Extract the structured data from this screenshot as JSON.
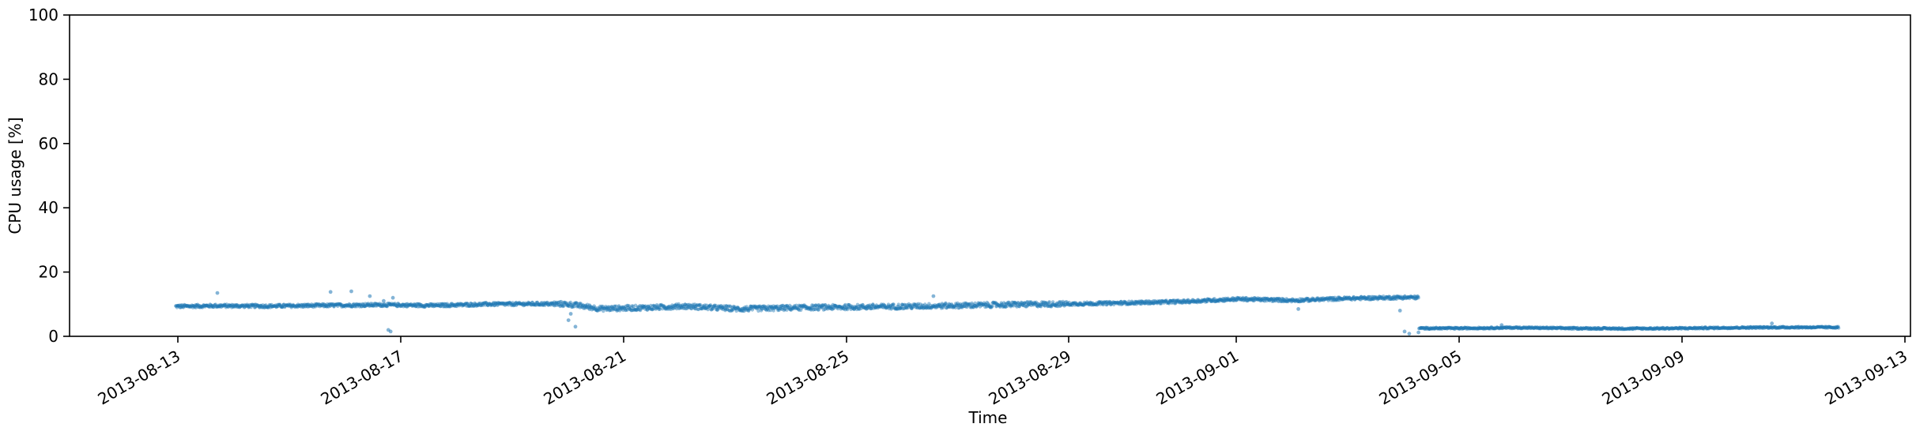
{
  "chart_data": {
    "type": "scatter",
    "xlabel": "Time",
    "ylabel": "CPU usage [%]",
    "ylim": [
      0,
      100
    ],
    "xlim": [
      "2013-08-10T22:00",
      "2013-09-13T03:00"
    ],
    "y_ticks": [
      "0",
      "20",
      "40",
      "60",
      "80",
      "100"
    ],
    "x_ticks": [
      "2013-08-13",
      "2013-08-17",
      "2013-08-21",
      "2013-08-25",
      "2013-08-29",
      "2013-09-01",
      "2013-09-05",
      "2013-09-09",
      "2013-09-13"
    ],
    "grid": false,
    "legend": "none",
    "marker_color": "#1f77b4",
    "series": [
      {
        "x": [
          "2013-08-12T20:00",
          "2013-08-13T12:00",
          "2013-08-14T12:00",
          "2013-08-15T12:00",
          "2013-08-16T12:00",
          "2013-08-17T12:00",
          "2013-08-18T12:00",
          "2013-08-19T12:00",
          "2013-08-19T22:00",
          "2013-08-20T12:00",
          "2013-08-21T12:00",
          "2013-08-22T00:00",
          "2013-08-23T00:00",
          "2013-08-24T00:00",
          "2013-08-25T00:00",
          "2013-08-26T00:00",
          "2013-08-27T00:00",
          "2013-08-28T00:00",
          "2013-08-29T00:00",
          "2013-08-30T00:00",
          "2013-08-31T00:00",
          "2013-09-01T00:00",
          "2013-09-02T00:00",
          "2013-09-03T00:00",
          "2013-09-03T22:00",
          "2013-09-04T06:00",
          "2013-09-05T00:00",
          "2013-09-06T00:00",
          "2013-09-07T00:00",
          "2013-09-08T00:00",
          "2013-09-09T00:00",
          "2013-09-10T00:00",
          "2013-09-11T00:00",
          "2013-09-11T20:00"
        ],
        "y": [
          9.3,
          9.5,
          9.4,
          9.6,
          9.8,
          9.6,
          10.0,
          10.1,
          10.0,
          8.6,
          9.0,
          9.4,
          8.5,
          8.9,
          9.1,
          9.3,
          9.6,
          9.9,
          10.1,
          10.4,
          10.8,
          11.6,
          11.2,
          11.8,
          12.1,
          2.5,
          2.5,
          2.7,
          2.5,
          2.4,
          2.5,
          2.7,
          2.8,
          2.8
        ],
        "outliers": [
          {
            "x": "2013-08-13T14:00",
            "y": 13.5
          },
          {
            "x": "2013-08-15T15:00",
            "y": 13.8
          },
          {
            "x": "2013-08-16T00:00",
            "y": 14.0
          },
          {
            "x": "2013-08-16T08:00",
            "y": 12.5
          },
          {
            "x": "2013-08-16T14:00",
            "y": 11.0
          },
          {
            "x": "2013-08-16T16:00",
            "y": 2.0
          },
          {
            "x": "2013-08-16T17:00",
            "y": 1.5
          },
          {
            "x": "2013-08-16T18:00",
            "y": 12.0
          },
          {
            "x": "2013-08-19T22:00",
            "y": 5.0
          },
          {
            "x": "2013-08-19T23:00",
            "y": 7.0
          },
          {
            "x": "2013-08-20T01:00",
            "y": 3.0
          },
          {
            "x": "2013-08-26T12:00",
            "y": 12.5
          },
          {
            "x": "2013-09-02T02:00",
            "y": 8.5
          },
          {
            "x": "2013-09-03T22:00",
            "y": 8.0
          },
          {
            "x": "2013-09-04T00:00",
            "y": 1.5
          },
          {
            "x": "2013-09-04T02:00",
            "y": 0.8
          },
          {
            "x": "2013-09-04T06:00",
            "y": 1.2
          },
          {
            "x": "2013-09-05T18:00",
            "y": 3.5
          },
          {
            "x": "2013-09-10T15:00",
            "y": 4.0
          }
        ]
      }
    ]
  }
}
